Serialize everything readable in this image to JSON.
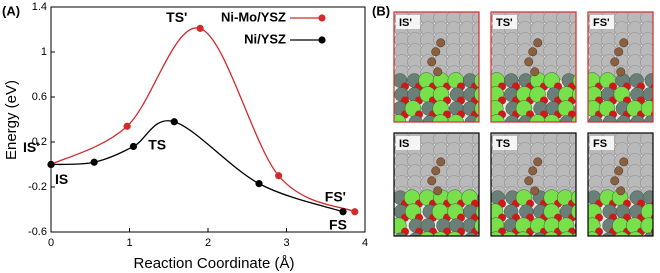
{
  "chart_data": {
    "type": "line",
    "panel_label": "(A)",
    "xlabel": "Reaction Coordinate (Å)",
    "ylabel": "Energy (eV)",
    "xlim": [
      0,
      4
    ],
    "xticks": [
      0,
      1,
      2,
      3,
      4
    ],
    "ylim": [
      -0.6,
      1.4
    ],
    "yticks": [
      1.4,
      1,
      0.6,
      0.2,
      -0.2,
      -0.6
    ],
    "legend": "upper right",
    "series": [
      {
        "name": "Ni-Mo/YSZ",
        "color": "#d12b2b",
        "x": [
          0,
          0.97,
          1.9,
          2.9,
          3.87
        ],
        "values": [
          0,
          0.34,
          1.21,
          -0.1,
          -0.42
        ],
        "point_labels": [
          "IS'",
          null,
          "TS'",
          null,
          "FS'"
        ]
      },
      {
        "name": "Ni/YSZ",
        "color": "#000000",
        "x": [
          0,
          0.55,
          1.05,
          1.57,
          2.65,
          3.72
        ],
        "values": [
          0,
          0.02,
          0.16,
          0.38,
          -0.17,
          -0.42
        ],
        "point_labels": [
          "IS",
          null,
          null,
          "TS",
          null,
          "FS"
        ]
      }
    ]
  },
  "panel_b": {
    "label": "(B)",
    "structures": [
      "IS'",
      "TS'",
      "FS'",
      "IS",
      "TS",
      "FS"
    ]
  }
}
